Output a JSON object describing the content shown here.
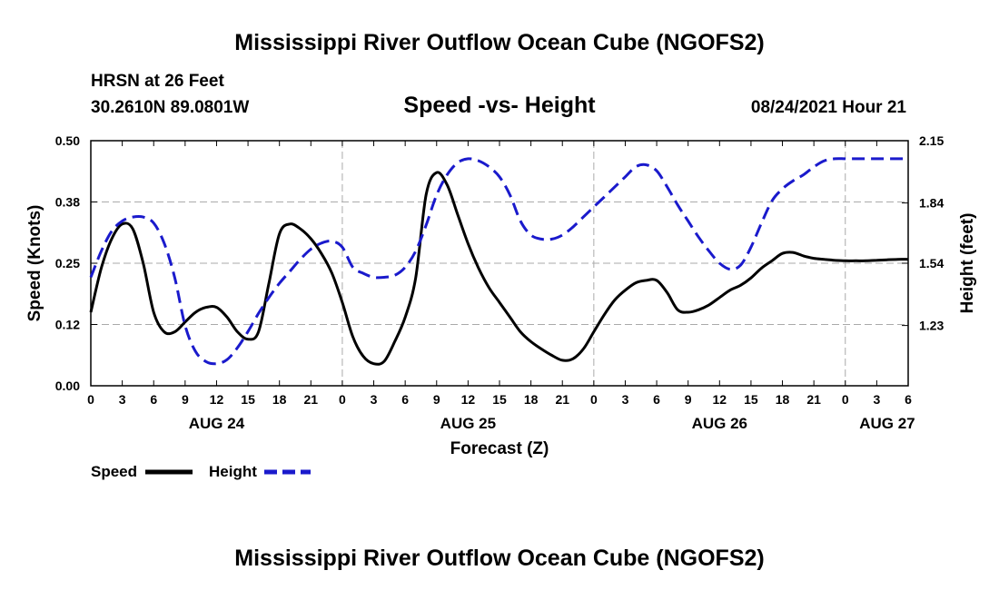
{
  "header": {
    "title": "Mississippi River Outflow Ocean Cube (NGOFS2)",
    "station": "HRSN at 26 Feet",
    "location": "30.2610N  89.0801W",
    "chart_title": "Speed -vs- Height",
    "timestamp": "08/24/2021 Hour 21"
  },
  "footer": {
    "title": "Mississippi River Outflow Ocean Cube (NGOFS2)"
  },
  "colors": {
    "speed": "#000000",
    "height": "#1a1acc",
    "grid": "#aaaaaa"
  },
  "chart_data": {
    "type": "line",
    "title": "Speed -vs- Height",
    "xlabel": "Forecast (Z)",
    "ylabel": "Speed (Knots)",
    "y2label": "Height (feet)",
    "xlim": [
      0,
      78
    ],
    "ylim": [
      0,
      0.5
    ],
    "y2lim": [
      0.93,
      2.15
    ],
    "x_ticks": [
      0,
      3,
      6,
      9,
      12,
      15,
      18,
      21,
      24,
      27,
      30,
      33,
      36,
      39,
      42,
      45,
      48,
      51,
      54,
      57,
      60,
      63,
      66,
      69,
      72,
      75,
      78
    ],
    "x_tick_labels": [
      "0",
      "3",
      "6",
      "9",
      "12",
      "15",
      "18",
      "21",
      "0",
      "3",
      "6",
      "9",
      "12",
      "15",
      "18",
      "21",
      "0",
      "3",
      "6",
      "9",
      "12",
      "15",
      "18",
      "21",
      "0",
      "3",
      "6"
    ],
    "y_ticks": [
      0,
      0.125,
      0.25,
      0.375,
      0.5
    ],
    "y_tick_labels": [
      "0.00",
      "0.12",
      "0.25",
      "0.38",
      "0.50"
    ],
    "y2_ticks": [
      1.23,
      1.54,
      1.84,
      2.15
    ],
    "y2_tick_labels": [
      "1.23",
      "1.54",
      "1.84",
      "2.15"
    ],
    "date_labels": [
      {
        "x": 12,
        "label": "AUG 24"
      },
      {
        "x": 36,
        "label": "AUG 25"
      },
      {
        "x": 60,
        "label": "AUG 26"
      },
      {
        "x": 76,
        "label": "AUG 27"
      }
    ],
    "legend": [
      {
        "name": "Speed",
        "style": "solid"
      },
      {
        "name": "Height",
        "style": "dashed"
      }
    ],
    "series": [
      {
        "name": "Speed",
        "axis": "left",
        "x": [
          0,
          1,
          2,
          3,
          4,
          5,
          6,
          7,
          8,
          9,
          10,
          11,
          12,
          13,
          14,
          15,
          16,
          17,
          18,
          19,
          20,
          21,
          22,
          23,
          24,
          25,
          26,
          27,
          28,
          29,
          30,
          31,
          32,
          33,
          34,
          35,
          36,
          37,
          38,
          39,
          40,
          41,
          42,
          43,
          44,
          45,
          46,
          47,
          48,
          49,
          50,
          51,
          52,
          53,
          54,
          55,
          56,
          57,
          58,
          59,
          60,
          61,
          62,
          63,
          64,
          65,
          66,
          67,
          68,
          69,
          70,
          71,
          72,
          73,
          74,
          75,
          76,
          77,
          78
        ],
        "values": [
          0.15,
          0.24,
          0.3,
          0.33,
          0.32,
          0.25,
          0.15,
          0.11,
          0.11,
          0.13,
          0.15,
          0.16,
          0.16,
          0.14,
          0.11,
          0.095,
          0.11,
          0.21,
          0.31,
          0.33,
          0.32,
          0.3,
          0.27,
          0.23,
          0.17,
          0.1,
          0.06,
          0.045,
          0.05,
          0.09,
          0.14,
          0.22,
          0.39,
          0.435,
          0.41,
          0.35,
          0.29,
          0.24,
          0.2,
          0.17,
          0.14,
          0.11,
          0.09,
          0.075,
          0.062,
          0.052,
          0.055,
          0.075,
          0.11,
          0.145,
          0.175,
          0.195,
          0.21,
          0.215,
          0.215,
          0.19,
          0.155,
          0.15,
          0.155,
          0.165,
          0.18,
          0.195,
          0.205,
          0.22,
          0.24,
          0.255,
          0.27,
          0.272,
          0.265,
          0.26,
          0.258,
          0.256,
          0.255,
          0.255,
          0.255,
          0.256,
          0.257,
          0.258,
          0.258
        ]
      },
      {
        "name": "Height",
        "axis": "right",
        "x": [
          0,
          1,
          2,
          3,
          4,
          5,
          6,
          7,
          8,
          9,
          10,
          11,
          12,
          13,
          14,
          15,
          16,
          17,
          18,
          19,
          20,
          21,
          22,
          23,
          24,
          25,
          26,
          27,
          28,
          29,
          30,
          31,
          32,
          33,
          34,
          35,
          36,
          37,
          38,
          39,
          40,
          41,
          42,
          43,
          44,
          45,
          46,
          47,
          48,
          49,
          50,
          51,
          52,
          53,
          54,
          55,
          56,
          57,
          58,
          59,
          60,
          61,
          62,
          63,
          64,
          65,
          66,
          67,
          68,
          69,
          70,
          71,
          72,
          73,
          74,
          75,
          76,
          77,
          78
        ],
        "values": [
          1.47,
          1.6,
          1.7,
          1.75,
          1.77,
          1.77,
          1.74,
          1.64,
          1.47,
          1.23,
          1.1,
          1.05,
          1.04,
          1.06,
          1.12,
          1.2,
          1.29,
          1.37,
          1.44,
          1.5,
          1.56,
          1.61,
          1.64,
          1.65,
          1.62,
          1.52,
          1.49,
          1.47,
          1.47,
          1.48,
          1.52,
          1.6,
          1.73,
          1.88,
          1.98,
          2.04,
          2.06,
          2.05,
          2.02,
          1.97,
          1.88,
          1.75,
          1.68,
          1.66,
          1.66,
          1.68,
          1.72,
          1.77,
          1.82,
          1.87,
          1.92,
          1.97,
          2.02,
          2.03,
          2.0,
          1.92,
          1.83,
          1.75,
          1.67,
          1.6,
          1.54,
          1.51,
          1.53,
          1.62,
          1.74,
          1.85,
          1.91,
          1.95,
          1.98,
          2.02,
          2.05,
          2.06,
          2.06,
          2.06,
          2.06,
          2.06,
          2.06,
          2.06,
          2.06
        ]
      }
    ]
  }
}
